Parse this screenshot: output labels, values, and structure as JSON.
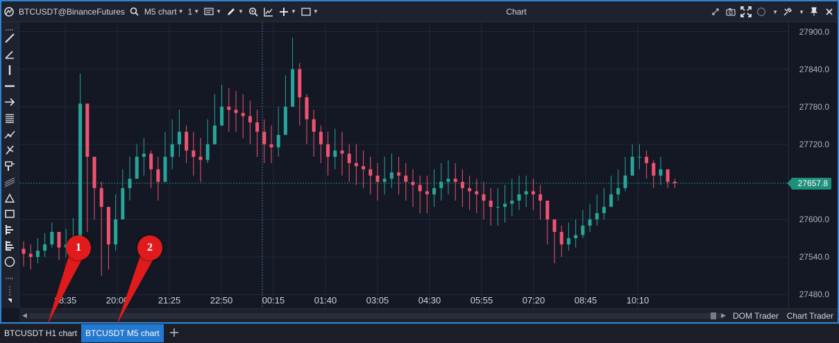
{
  "toolbar": {
    "symbol": "BTCUSDT@BinanceFutures",
    "chart_type": "M5 chart",
    "count": "1",
    "title": "Chart"
  },
  "colors": {
    "bull": "#26a69a",
    "bear": "#ef5370",
    "accent": "#2d84d6",
    "price_badge": "#1d8f7a",
    "callout": "#e11b1b"
  },
  "chart_data": {
    "type": "candlestick",
    "x_labels": [
      "18:35",
      "20:00",
      "21:25",
      "22:50",
      "00:15",
      "01:40",
      "03:05",
      "04:30",
      "05:55",
      "07:20",
      "08:45",
      "10:10"
    ],
    "y_ticks": [
      "27900.0",
      "27840.0",
      "27780.0",
      "27720.0",
      "27600.0",
      "27540.0",
      "27480.0"
    ],
    "ylim": [
      27458,
      27915
    ],
    "current_price": "27657.8",
    "closes": [
      27545,
      27540,
      27550,
      27560,
      27580,
      27555,
      27560,
      27570,
      27785,
      27700,
      27650,
      27620,
      27560,
      27600,
      27650,
      27665,
      27700,
      27705,
      27680,
      27660,
      27700,
      27720,
      27740,
      27710,
      27700,
      27695,
      27720,
      27750,
      27780,
      27775,
      27770,
      27765,
      27755,
      27740,
      27720,
      27715,
      27735,
      27780,
      27840,
      27795,
      27760,
      27740,
      27720,
      27700,
      27710,
      27705,
      27690,
      27685,
      27680,
      27670,
      27660,
      27665,
      27675,
      27670,
      27660,
      27655,
      27645,
      27640,
      27650,
      27660,
      27665,
      27660,
      27650,
      27645,
      27640,
      27630,
      27620,
      27620,
      27625,
      27630,
      27640,
      27645,
      27640,
      27630,
      27600,
      27580,
      27560,
      27570,
      27575,
      27590,
      27600,
      27610,
      27620,
      27640,
      27650,
      27670,
      27700,
      27700,
      27690,
      27670,
      27680,
      27660,
      27657.8
    ],
    "highs": [
      27565,
      27560,
      27570,
      27578,
      27595,
      27580,
      27585,
      27602,
      27833,
      27760,
      27700,
      27660,
      27610,
      27640,
      27680,
      27700,
      27720,
      27730,
      27710,
      27700,
      27740,
      27760,
      27775,
      27750,
      27740,
      27730,
      27760,
      27800,
      27815,
      27810,
      27805,
      27800,
      27790,
      27775,
      27760,
      27750,
      27780,
      27830,
      27890,
      27850,
      27800,
      27775,
      27750,
      27740,
      27745,
      27740,
      27720,
      27720,
      27710,
      27700,
      27690,
      27700,
      27705,
      27700,
      27690,
      27680,
      27670,
      27670,
      27680,
      27690,
      27695,
      27690,
      27680,
      27670,
      27665,
      27660,
      27650,
      27650,
      27655,
      27665,
      27670,
      27670,
      27665,
      27655,
      27625,
      27600,
      27590,
      27595,
      27600,
      27615,
      27625,
      27640,
      27650,
      27670,
      27680,
      27700,
      27720,
      27720,
      27710,
      27695,
      27700,
      27680,
      27665
    ],
    "lows": [
      27525,
      27520,
      27530,
      27540,
      27555,
      27535,
      27540,
      27548,
      27600,
      27580,
      27600,
      27510,
      27520,
      27550,
      27610,
      27630,
      27670,
      27670,
      27650,
      27630,
      27660,
      27680,
      27700,
      27690,
      27670,
      27660,
      27690,
      27720,
      27750,
      27740,
      27740,
      27730,
      27720,
      27700,
      27690,
      27690,
      27700,
      27740,
      27780,
      27750,
      27720,
      27700,
      27690,
      27670,
      27680,
      27670,
      27660,
      27655,
      27650,
      27640,
      27630,
      27640,
      27650,
      27640,
      27630,
      27620,
      27610,
      27610,
      27620,
      27630,
      27640,
      27630,
      27620,
      27615,
      27610,
      27600,
      27590,
      27590,
      27595,
      27605,
      27615,
      27620,
      27615,
      27600,
      27560,
      27530,
      27540,
      27550,
      27555,
      27570,
      27580,
      27590,
      27600,
      27620,
      27630,
      27645,
      27670,
      27680,
      27665,
      27650,
      27655,
      27650,
      27650
    ]
  },
  "left_tools": [
    "dots-handle-icon",
    "trend-line-icon",
    "angle-line-icon",
    "vertical-line-icon",
    "horizontal-line-icon",
    "arrow-icon",
    "fibonacci-icon",
    "polyline-icon",
    "pitchfork-icon",
    "gann-icon",
    "channel-icon",
    "triangle-icon",
    "rectangle-icon",
    "volume-profile-icon",
    "volume-profile-2-icon",
    "circle-icon",
    "dots-more-icon"
  ],
  "bottom": {
    "dom_trader": "DOM Trader",
    "chart_trader": "Chart Trader"
  },
  "tabs": [
    {
      "label": "BTCUSDT H1 chart",
      "active": false
    },
    {
      "label": "BTCUSDT M5 chart",
      "active": true
    }
  ],
  "callouts": [
    "1",
    "2"
  ]
}
